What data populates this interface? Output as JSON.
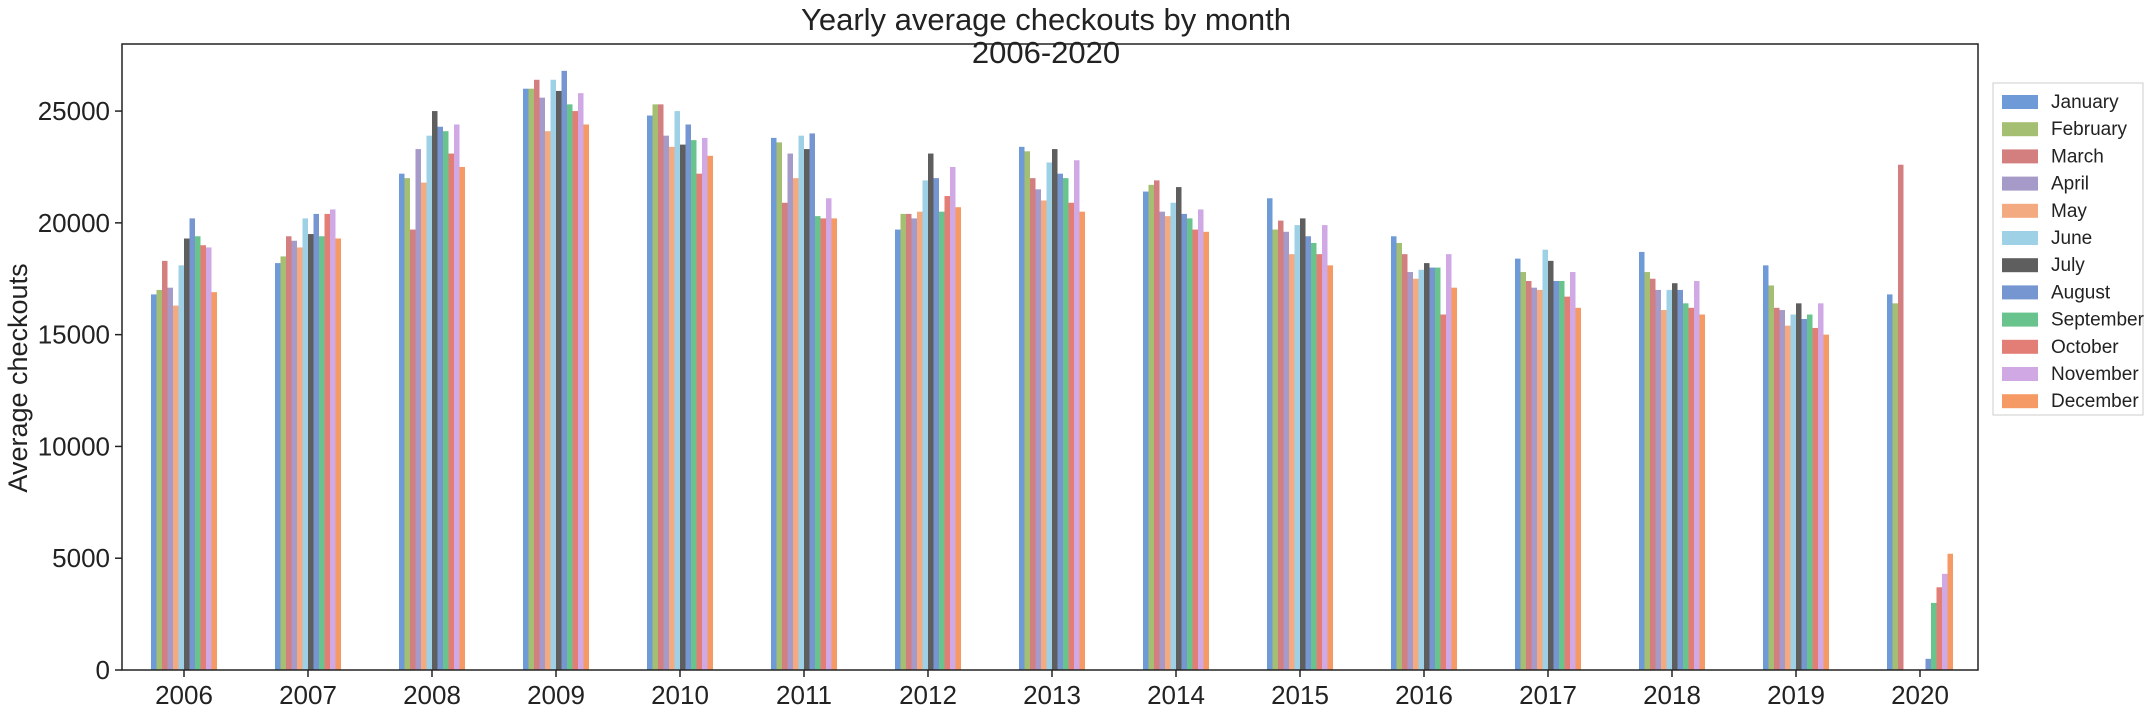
{
  "chart_data": {
    "type": "bar",
    "title": "Yearly average checkouts by month",
    "subtitle": "2006-2020",
    "xlabel": "",
    "ylabel": "Average checkouts",
    "ylim": [
      0,
      28000
    ],
    "yticks": [
      0,
      5000,
      10000,
      15000,
      20000,
      25000
    ],
    "grid": false,
    "legend_position": "outside-right",
    "categories": [
      "2006",
      "2007",
      "2008",
      "2009",
      "2010",
      "2011",
      "2012",
      "2013",
      "2014",
      "2015",
      "2016",
      "2017",
      "2018",
      "2019",
      "2020"
    ],
    "series": [
      {
        "name": "January",
        "color": "#6e9bd8",
        "values": [
          16800,
          18200,
          22200,
          26000,
          24800,
          23800,
          19700,
          23400,
          21400,
          21100,
          19400,
          18400,
          18700,
          18100,
          16800
        ]
      },
      {
        "name": "February",
        "color": "#a4bf72",
        "values": [
          17000,
          18500,
          22000,
          26000,
          25300,
          23600,
          20400,
          23200,
          21700,
          19700,
          19100,
          17800,
          17800,
          17200,
          16400
        ]
      },
      {
        "name": "March",
        "color": "#d47f7f",
        "values": [
          18300,
          19400,
          19700,
          26400,
          25300,
          20900,
          20400,
          22000,
          21900,
          20100,
          18600,
          17400,
          17500,
          16200,
          22600
        ]
      },
      {
        "name": "April",
        "color": "#a69ac8",
        "values": [
          17100,
          19200,
          23300,
          25600,
          23900,
          23100,
          20200,
          21500,
          20500,
          19600,
          17800,
          17100,
          17000,
          16100,
          0
        ]
      },
      {
        "name": "May",
        "color": "#f4aa80",
        "values": [
          16300,
          18900,
          21800,
          24100,
          23400,
          22000,
          20500,
          21000,
          20300,
          18600,
          17500,
          17000,
          16100,
          15400,
          0
        ]
      },
      {
        "name": "June",
        "color": "#9fd1e6",
        "values": [
          18100,
          20200,
          23900,
          26400,
          25000,
          23900,
          21900,
          22700,
          20900,
          19900,
          17900,
          18800,
          17000,
          15900,
          0
        ]
      },
      {
        "name": "July",
        "color": "#5e5e5e",
        "values": [
          19300,
          19500,
          25000,
          25900,
          23500,
          23300,
          23100,
          23300,
          21600,
          20200,
          18200,
          18300,
          17300,
          16400,
          0
        ]
      },
      {
        "name": "August",
        "color": "#7596d0",
        "values": [
          20200,
          20400,
          24300,
          26800,
          24400,
          24000,
          22000,
          22200,
          20400,
          19400,
          18000,
          17400,
          17000,
          15700,
          500
        ]
      },
      {
        "name": "September",
        "color": "#68c48c",
        "values": [
          19400,
          19400,
          24100,
          25300,
          23700,
          20300,
          20500,
          22000,
          20200,
          19100,
          18000,
          17400,
          16400,
          15900,
          3000
        ]
      },
      {
        "name": "October",
        "color": "#e37e76",
        "values": [
          19000,
          20400,
          23100,
          25000,
          22200,
          20200,
          21200,
          20900,
          19700,
          18600,
          15900,
          16700,
          16200,
          15300,
          3700
        ]
      },
      {
        "name": "November",
        "color": "#cfa8e4",
        "values": [
          18900,
          20600,
          24400,
          25800,
          23800,
          21100,
          22500,
          22800,
          20600,
          19900,
          18600,
          17800,
          17400,
          16400,
          4300
        ]
      },
      {
        "name": "December",
        "color": "#f59a64",
        "values": [
          16900,
          19300,
          22500,
          24400,
          23000,
          20200,
          20700,
          20500,
          19600,
          18100,
          17100,
          16200,
          15900,
          15000,
          5200
        ]
      }
    ]
  }
}
